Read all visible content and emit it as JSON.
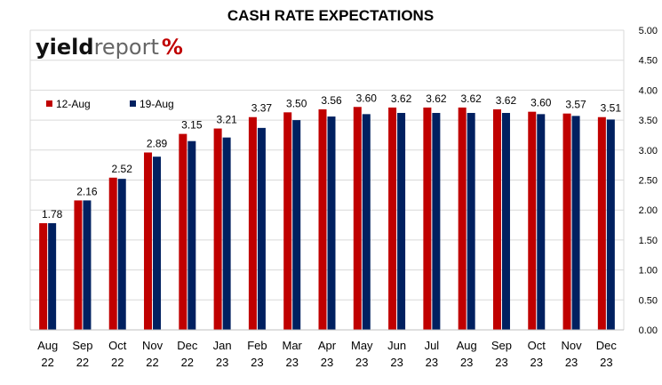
{
  "chart_data": {
    "type": "bar",
    "title": "CASH RATE EXPECTATIONS",
    "xlabel": "",
    "ylabel": "",
    "ylim": [
      0,
      5
    ],
    "ytick_step": 0.5,
    "grid": true,
    "legend_position": "top-left",
    "categories": [
      [
        "Aug",
        "22"
      ],
      [
        "Sep",
        "22"
      ],
      [
        "Oct",
        "22"
      ],
      [
        "Nov",
        "22"
      ],
      [
        "Dec",
        "22"
      ],
      [
        "Jan",
        "23"
      ],
      [
        "Feb",
        "23"
      ],
      [
        "Mar",
        "23"
      ],
      [
        "Apr",
        "23"
      ],
      [
        "May",
        "23"
      ],
      [
        "Jun",
        "23"
      ],
      [
        "Jul",
        "23"
      ],
      [
        "Aug",
        "23"
      ],
      [
        "Sep",
        "23"
      ],
      [
        "Oct",
        "23"
      ],
      [
        "Nov",
        "23"
      ],
      [
        "Dec",
        "23"
      ]
    ],
    "series": [
      {
        "name": "12-Aug",
        "color": "#C00000",
        "values": [
          1.78,
          2.16,
          2.54,
          2.96,
          3.27,
          3.36,
          3.55,
          3.63,
          3.68,
          3.72,
          3.71,
          3.71,
          3.71,
          3.68,
          3.64,
          3.61,
          3.55
        ]
      },
      {
        "name": "19-Aug",
        "color": "#002060",
        "values": [
          1.78,
          2.16,
          2.52,
          2.89,
          3.15,
          3.21,
          3.37,
          3.5,
          3.56,
          3.6,
          3.62,
          3.62,
          3.62,
          3.62,
          3.6,
          3.57,
          3.51
        ]
      }
    ],
    "data_labels": [
      "1.78",
      "2.16",
      "2.52",
      "2.89",
      "3.15",
      "3.21",
      "3.37",
      "3.50",
      "3.56",
      "3.60",
      "3.62",
      "3.62",
      "3.62",
      "3.62",
      "3.60",
      "3.57",
      "3.51"
    ]
  },
  "logo": {
    "part1": "yield",
    "part2": "report",
    "part3": "%",
    "colors": {
      "green": "#2E8B2E",
      "red": "#C00000"
    }
  },
  "colors": {
    "grid": "#D9D9D9",
    "axis": "#BFBFBF"
  }
}
